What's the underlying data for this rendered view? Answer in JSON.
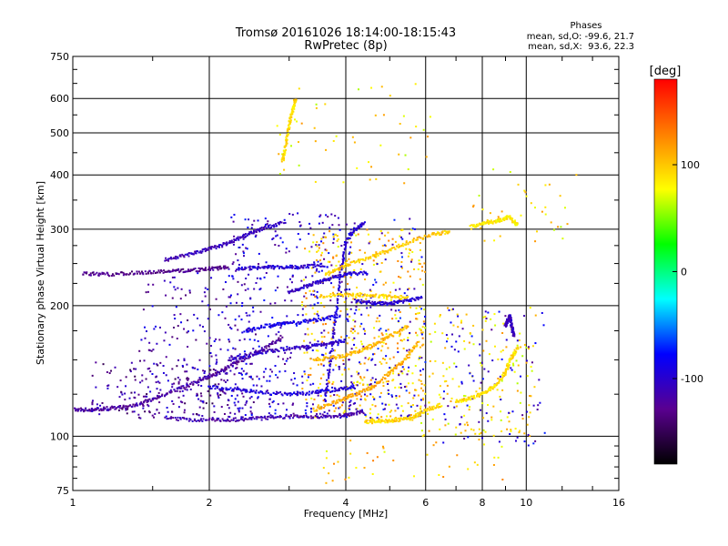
{
  "chart_data": {
    "type": "scatter",
    "title": "Tromsø 20161026 18:14:00-18:15:43",
    "subtitle": "RwPretec (8p)",
    "xlabel": "Frequency [MHz]",
    "ylabel": "Stationary phase Virtual Height [km]",
    "x_scale": "log",
    "y_scale": "log",
    "xlim": [
      1,
      16
    ],
    "ylim": [
      75,
      750
    ],
    "x_ticks": [
      1,
      2,
      4,
      6,
      8,
      10,
      16
    ],
    "y_ticks": [
      75,
      100,
      200,
      300,
      400,
      500,
      600,
      750
    ],
    "grid": true,
    "stats": {
      "title": "Phases",
      "line_o": "mean, sd,O: -99.6, 21.7",
      "line_x": "mean, sd,X:  93.6, 22.3"
    },
    "colorbar": {
      "label": "[deg]",
      "ticks": [
        100,
        0,
        -100
      ],
      "range": [
        -180,
        180
      ],
      "colors": [
        "#000000",
        "#5a0090",
        "#0000ff",
        "#00ffff",
        "#00ff00",
        "#ffff00",
        "#ff8000",
        "#ff0000"
      ]
    },
    "traces": [
      {
        "phase": -120,
        "points": [
          [
            1.0,
            115
          ],
          [
            1.1,
            115
          ],
          [
            1.2,
            116
          ],
          [
            1.35,
            117
          ],
          [
            1.5,
            122
          ],
          [
            1.7,
            128
          ],
          [
            1.9,
            134
          ],
          [
            2.1,
            140
          ],
          [
            2.3,
            148
          ],
          [
            2.6,
            158
          ],
          [
            2.9,
            170
          ]
        ]
      },
      {
        "phase": -115,
        "points": [
          [
            1.6,
            110
          ],
          [
            1.9,
            109
          ],
          [
            2.2,
            109
          ],
          [
            2.6,
            110
          ],
          [
            3.0,
            111
          ],
          [
            3.5,
            111
          ],
          [
            4.0,
            112
          ],
          [
            4.4,
            114
          ]
        ]
      },
      {
        "phase": -130,
        "points": [
          [
            1.05,
            237
          ],
          [
            1.2,
            236
          ],
          [
            1.4,
            238
          ],
          [
            1.6,
            240
          ],
          [
            1.8,
            241
          ],
          [
            2.0,
            243
          ],
          [
            2.2,
            245
          ]
        ]
      },
      {
        "phase": -110,
        "points": [
          [
            1.6,
            255
          ],
          [
            1.8,
            262
          ],
          [
            2.0,
            270
          ],
          [
            2.2,
            278
          ],
          [
            2.4,
            290
          ],
          [
            2.6,
            300
          ],
          [
            2.9,
            310
          ]
        ]
      },
      {
        "phase": -100,
        "points": [
          [
            2.3,
            243
          ],
          [
            2.6,
            245
          ],
          [
            2.9,
            245
          ],
          [
            3.2,
            246
          ],
          [
            3.6,
            248
          ]
        ]
      },
      {
        "phase": -95,
        "points": [
          [
            2.0,
            130
          ],
          [
            2.3,
            128
          ],
          [
            2.6,
            126
          ],
          [
            3.0,
            125
          ],
          [
            3.4,
            126
          ],
          [
            3.8,
            128
          ],
          [
            4.2,
            130
          ]
        ]
      },
      {
        "phase": -105,
        "points": [
          [
            2.2,
            150
          ],
          [
            2.5,
            155
          ],
          [
            2.8,
            158
          ],
          [
            3.2,
            160
          ],
          [
            3.6,
            163
          ],
          [
            4.0,
            166
          ]
        ]
      },
      {
        "phase": -90,
        "points": [
          [
            2.4,
            175
          ],
          [
            2.7,
            180
          ],
          [
            3.0,
            182
          ],
          [
            3.4,
            185
          ],
          [
            3.9,
            190
          ]
        ]
      },
      {
        "phase": -100,
        "points": [
          [
            3.6,
            120
          ],
          [
            3.7,
            150
          ],
          [
            3.8,
            190
          ],
          [
            3.9,
            240
          ],
          [
            4.0,
            280
          ],
          [
            4.2,
            300
          ],
          [
            4.4,
            310
          ]
        ]
      },
      {
        "phase": -100,
        "points": [
          [
            4.2,
            205
          ],
          [
            4.6,
            203
          ],
          [
            5.0,
            202
          ],
          [
            5.4,
            205
          ],
          [
            5.9,
            208
          ]
        ]
      },
      {
        "phase": -100,
        "points": [
          [
            3.0,
            215
          ],
          [
            3.3,
            222
          ],
          [
            3.6,
            230
          ],
          [
            4.0,
            236
          ],
          [
            4.5,
            238
          ]
        ]
      },
      {
        "phase": 110,
        "points": [
          [
            3.4,
            115
          ],
          [
            3.8,
            120
          ],
          [
            4.2,
            125
          ],
          [
            4.6,
            130
          ],
          [
            5.0,
            140
          ],
          [
            5.4,
            150
          ],
          [
            5.8,
            165
          ]
        ]
      },
      {
        "phase": 105,
        "points": [
          [
            3.4,
            150
          ],
          [
            3.8,
            152
          ],
          [
            4.2,
            156
          ],
          [
            4.6,
            162
          ],
          [
            5.0,
            170
          ],
          [
            5.5,
            180
          ]
        ]
      },
      {
        "phase": 100,
        "points": [
          [
            3.6,
            235
          ],
          [
            4.0,
            248
          ],
          [
            4.5,
            258
          ],
          [
            5.0,
            268
          ],
          [
            5.5,
            280
          ],
          [
            6.2,
            292
          ],
          [
            6.8,
            296
          ]
        ]
      },
      {
        "phase": 95,
        "points": [
          [
            3.5,
            210
          ],
          [
            4.0,
            212
          ],
          [
            4.5,
            211
          ],
          [
            5.0,
            210
          ],
          [
            5.5,
            208
          ]
        ]
      },
      {
        "phase": 95,
        "points": [
          [
            4.4,
            108
          ],
          [
            4.8,
            108
          ],
          [
            5.2,
            109
          ],
          [
            5.6,
            110
          ],
          [
            6.0,
            115
          ],
          [
            6.5,
            118
          ]
        ]
      },
      {
        "phase": 90,
        "points": [
          [
            7.0,
            120
          ],
          [
            7.5,
            122
          ],
          [
            8.0,
            125
          ],
          [
            8.5,
            130
          ],
          [
            9.0,
            140
          ],
          [
            9.2,
            150
          ],
          [
            9.6,
            160
          ]
        ]
      },
      {
        "phase": 85,
        "points": [
          [
            7.6,
            305
          ],
          [
            8.2,
            310
          ],
          [
            8.8,
            315
          ],
          [
            9.2,
            320
          ],
          [
            9.6,
            305
          ]
        ]
      },
      {
        "phase": 90,
        "points": [
          [
            2.9,
            430
          ],
          [
            2.95,
            470
          ],
          [
            3.0,
            520
          ],
          [
            3.05,
            560
          ],
          [
            3.1,
            600
          ]
        ]
      },
      {
        "phase": -110,
        "points": [
          [
            9.0,
            180
          ],
          [
            9.1,
            185
          ],
          [
            9.2,
            190
          ],
          [
            9.3,
            178
          ],
          [
            9.4,
            170
          ]
        ]
      }
    ],
    "scatter_regions": [
      {
        "x": [
          1.1,
          2.2
        ],
        "y": [
          112,
          150
        ],
        "phase": -125,
        "n": 160
      },
      {
        "x": [
          1.4,
          2.6
        ],
        "y": [
          110,
          240
        ],
        "phase": -110,
        "n": 220
      },
      {
        "x": [
          2.2,
          4.2
        ],
        "y": [
          110,
          330
        ],
        "phase": -100,
        "n": 420
      },
      {
        "x": [
          3.2,
          6.0
        ],
        "y": [
          108,
          300
        ],
        "phase": 100,
        "n": 420
      },
      {
        "x": [
          4.0,
          6.0
        ],
        "y": [
          110,
          320
        ],
        "phase": -95,
        "n": 160
      },
      {
        "x": [
          5.8,
          10.5
        ],
        "y": [
          100,
          200
        ],
        "phase": 90,
        "n": 180
      },
      {
        "x": [
          6.5,
          11.0
        ],
        "y": [
          95,
          200
        ],
        "phase": -100,
        "n": 90
      },
      {
        "x": [
          7.5,
          13.0
        ],
        "y": [
          280,
          420
        ],
        "phase": 90,
        "n": 40
      },
      {
        "x": [
          2.8,
          6.2
        ],
        "y": [
          380,
          680
        ],
        "phase": 90,
        "n": 50
      },
      {
        "x": [
          3.5,
          9.0
        ],
        "y": [
          78,
          100
        ],
        "phase": 100,
        "n": 40
      }
    ]
  }
}
